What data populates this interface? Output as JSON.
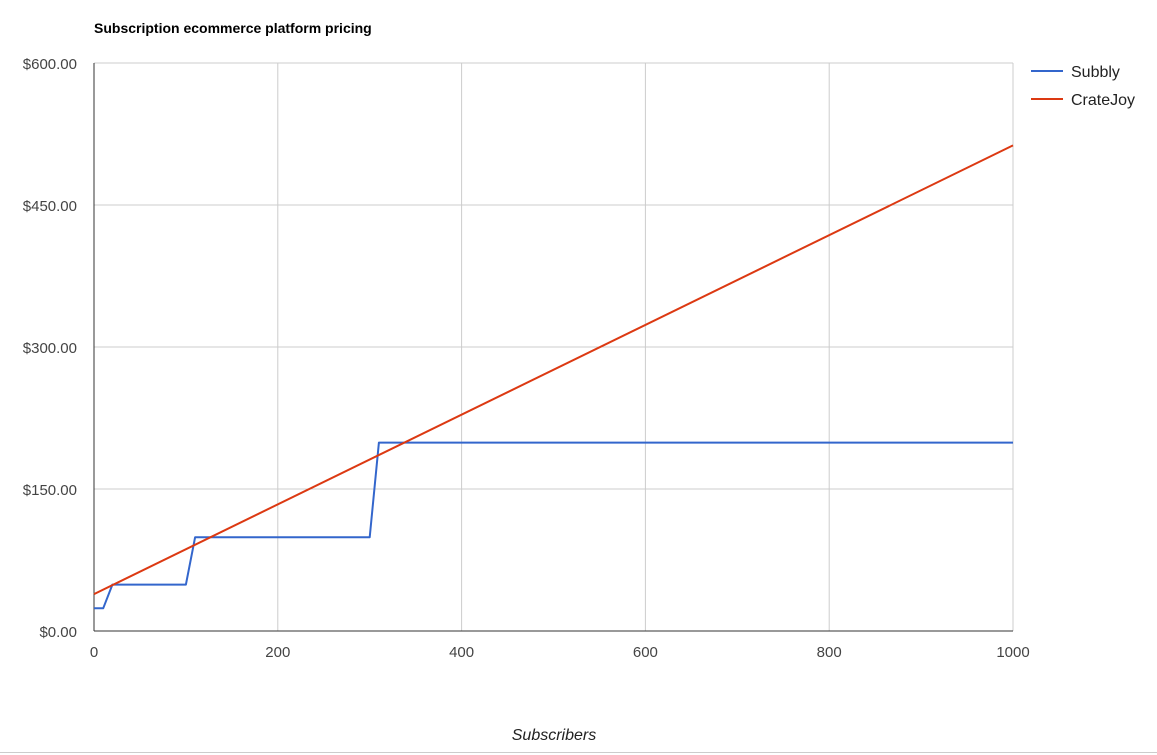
{
  "chart_data": {
    "type": "line",
    "title": "Subscription ecommerce platform pricing",
    "xlabel": "Subscribers",
    "ylabel": "",
    "xlim": [
      0,
      1000
    ],
    "ylim": [
      0,
      600
    ],
    "x_ticks": [
      "0",
      "200",
      "400",
      "600",
      "800",
      "1000"
    ],
    "y_ticks": [
      "$0.00",
      "$150.00",
      "$300.00",
      "$450.00",
      "$600.00"
    ],
    "grid": true,
    "legend_position": "right",
    "series": [
      {
        "name": "Subbly",
        "color": "#3366cc",
        "points": [
          [
            0,
            24
          ],
          [
            10,
            24
          ],
          [
            20,
            49
          ],
          [
            100,
            49
          ],
          [
            110,
            99
          ],
          [
            300,
            99
          ],
          [
            310,
            199
          ],
          [
            1000,
            199
          ]
        ]
      },
      {
        "name": "CrateJoy",
        "color": "#dc3912",
        "points": [
          [
            0,
            39
          ],
          [
            1000,
            513
          ]
        ]
      }
    ]
  }
}
